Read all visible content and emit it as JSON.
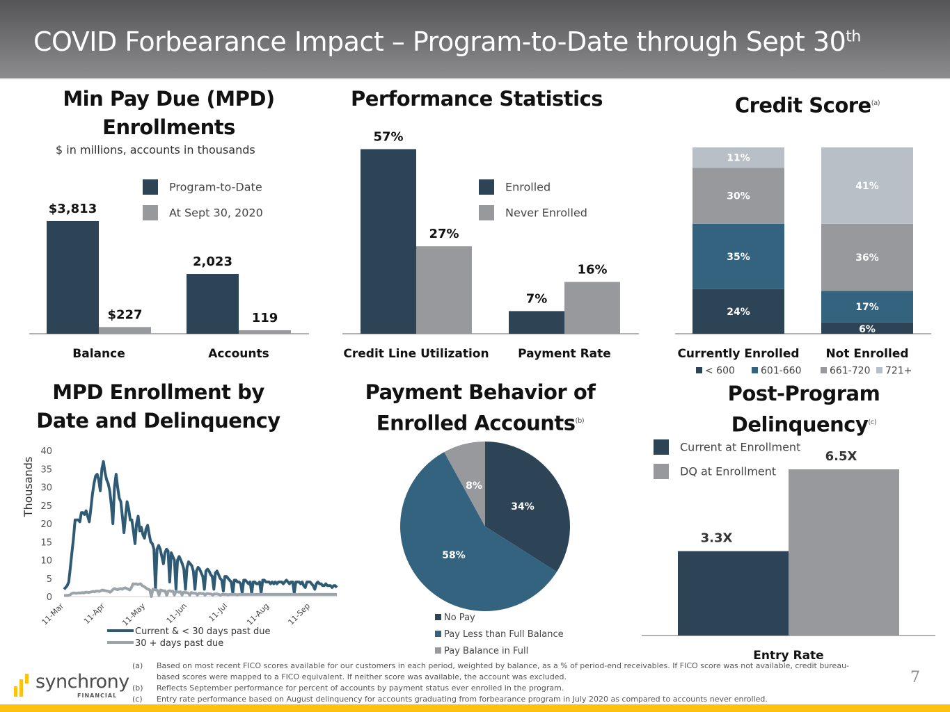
{
  "header": {
    "title": "COVID Forbearance Impact – Program-to-Date through Sept 30",
    "title_sup": "th"
  },
  "colors": {
    "dark": "#2d4456",
    "mid": "#33637f",
    "gray": "#98999c",
    "light": "#b9bfc6",
    "accent": "#fdc110"
  },
  "panels": {
    "mpd": {
      "title_line1": "Min Pay Due (MPD)",
      "title_line2": "Enrollments",
      "subtitle": "$ in millions, accounts in thousands"
    },
    "perf": {
      "title": "Performance Statistics"
    },
    "credit": {
      "title": "Credit Score",
      "note": "(a)"
    },
    "line": {
      "title_line1": "MPD Enrollment by",
      "title_line2": "Date and Delinquency"
    },
    "pie": {
      "title_line1": "Payment Behavior of",
      "title_line2": "Enrolled Accounts",
      "note": "(b)"
    },
    "post": {
      "title_line1": "Post-Program",
      "title_line2": "Delinquency",
      "note": "(c)"
    }
  },
  "chart_data": [
    {
      "id": "mpd",
      "type": "bar",
      "categories": [
        "Balance",
        "Accounts"
      ],
      "series": [
        {
          "name": "Program-to-Date",
          "values": [
            3813,
            2023
          ],
          "labels": [
            "$3,813",
            "2,023"
          ]
        },
        {
          "name": "At Sept 30, 2020",
          "values": [
            227,
            119
          ],
          "labels": [
            "$227",
            "119"
          ]
        }
      ],
      "ylim": [
        0,
        4000
      ]
    },
    {
      "id": "perf",
      "type": "bar",
      "categories": [
        "Credit Line Utilization",
        "Payment Rate"
      ],
      "series": [
        {
          "name": "Enrolled",
          "values": [
            57,
            7
          ],
          "labels": [
            "57%",
            "7%"
          ]
        },
        {
          "name": "Never Enrolled",
          "values": [
            27,
            16
          ],
          "labels": [
            "27%",
            "16%"
          ]
        }
      ],
      "ylim": [
        0,
        60
      ]
    },
    {
      "id": "credit",
      "type": "bar",
      "stacked": true,
      "categories": [
        "Currently Enrolled",
        "Not Enrolled"
      ],
      "series": [
        {
          "name": "< 600",
          "values": [
            24,
            6
          ]
        },
        {
          "name": "601-660",
          "values": [
            35,
            17
          ]
        },
        {
          "name": "661-720",
          "values": [
            30,
            36
          ]
        },
        {
          "name": "721+",
          "values": [
            11,
            41
          ]
        }
      ],
      "legend": "bottom"
    },
    {
      "id": "line",
      "type": "line",
      "ylabel": "Thousands",
      "ylim": [
        0,
        40
      ],
      "yticks": [
        0,
        5,
        10,
        15,
        20,
        25,
        30,
        35,
        40
      ],
      "xticks": [
        "11-Mar",
        "11-Apr",
        "11-May",
        "11-Jun",
        "11-Jul",
        "11-Aug",
        "11-Sep"
      ],
      "x_start": "11-Mar",
      "x_end": "30-Sep",
      "series": [
        {
          "name": "Current & < 30 days past due",
          "values": [
            2,
            2.5,
            3,
            4,
            8,
            12,
            16,
            21,
            21,
            21,
            20.5,
            23,
            23,
            22.5,
            23.5,
            22,
            20.5,
            24,
            28,
            31,
            33,
            33.5,
            32,
            29,
            35,
            37,
            34,
            32,
            31,
            29,
            25,
            20,
            30,
            33.5,
            30,
            27,
            26,
            22,
            17.5,
            22,
            26,
            24,
            21,
            21,
            18,
            14.5,
            20,
            22,
            18,
            19,
            17,
            16,
            18.5,
            19.5,
            17,
            15,
            14.5,
            13,
            2,
            13,
            14,
            13,
            11,
            9,
            12,
            13,
            12.5,
            4,
            12,
            11,
            10,
            2,
            10,
            11,
            10,
            9,
            7.5,
            2,
            8,
            9.5,
            9,
            8.5,
            7,
            2,
            7,
            8,
            7.5,
            6.5,
            5.5,
            2,
            7,
            7.5,
            7,
            6,
            5.5,
            2,
            6.5,
            7,
            6,
            5,
            4.5,
            1.5,
            5.5,
            5.5,
            5,
            4.5,
            4,
            1,
            4.5,
            4.5,
            4,
            4,
            3.5,
            1,
            4.5,
            4.5,
            4,
            3.5,
            4,
            1,
            4,
            4,
            3.5,
            3.5,
            4,
            1,
            4.5,
            4.5,
            4,
            4,
            4,
            3.5,
            4,
            3.5,
            4,
            3.5,
            4,
            4,
            4,
            3.5,
            4,
            4.5,
            4,
            3.5,
            4,
            4,
            1,
            4,
            4,
            4,
            3.5,
            4,
            3,
            2.5,
            4,
            4,
            4,
            3.5,
            3,
            2,
            3.5,
            4,
            3.5,
            3.5,
            3,
            3,
            3.5,
            3,
            3,
            3,
            2.5,
            3,
            3,
            2.5
          ]
        },
        {
          "name": "30 + days past due",
          "values": [
            0.3,
            0.3,
            0.3,
            0.4,
            0.5,
            0.8,
            1,
            1,
            0.9,
            1,
            1,
            1,
            1.1,
            1,
            1.2,
            1.2,
            1.1,
            1.2,
            1.3,
            1.4,
            1.3,
            1.5,
            1.5,
            1.4,
            1.6,
            1.8,
            1.7,
            1.6,
            1.5,
            1.4,
            1.2,
            1.5,
            2,
            2.2,
            2,
            1.9,
            2.1,
            2.2,
            2,
            2.3,
            2.4,
            2.2,
            2,
            1.8,
            2.5,
            3.5,
            3.4,
            3.5,
            3.3,
            3.4,
            3.5,
            3,
            2.8,
            2.5,
            2.2,
            2,
            1.8,
            0,
            2,
            1.9,
            1.8,
            1.7,
            0.3,
            1.8,
            1.7,
            1.5,
            1.6,
            0.3,
            1.5,
            1.6,
            1.4,
            1.5,
            0.4,
            1.4,
            1.3,
            1.2,
            1.3,
            0.4,
            1.2,
            1.1,
            1.1,
            1,
            0.4,
            1.1,
            1,
            0.9,
            0.9,
            0.4,
            0.9,
            0.9,
            0.8,
            0.8,
            0.4,
            0.8,
            0.8,
            0.7,
            0.7,
            0.4,
            0.7,
            0.7,
            0.7,
            0.6,
            0.4,
            0.6,
            0.6,
            0.6,
            0.6,
            0.5,
            0.6,
            0.6,
            0.6,
            0.6,
            0.6,
            0.5,
            0.6,
            0.6,
            0.6,
            0.6,
            0.6,
            0.6,
            0.6,
            0.6,
            0.6,
            0.6,
            0.6,
            0.6,
            0.6,
            0.6,
            0.6,
            0.6,
            0.6,
            0.6,
            0.6,
            0.6,
            0.6,
            0.6,
            0.6,
            0.6,
            0.6,
            0.6,
            0.6,
            0.6,
            0.6,
            0.6,
            0.6,
            0.6,
            0.6,
            0.6,
            0.6,
            0.6,
            0.6,
            0.6,
            0.6,
            0.6,
            0.6,
            0.6,
            0.6,
            0.6,
            0.6,
            0.6,
            0.6,
            0.6,
            0.6,
            0.6,
            0.6,
            0.6,
            0.6,
            0.6,
            0.6,
            0.6,
            0.6,
            0.6,
            0.6,
            0.6,
            0.6,
            0.6,
            0.6,
            0.6,
            0.6
          ]
        }
      ],
      "legend": "bottom"
    },
    {
      "id": "pie",
      "type": "pie",
      "slices": [
        {
          "name": "No Pay",
          "value": 34,
          "label": "34%"
        },
        {
          "name": "Pay Less than Full Balance",
          "value": 58,
          "label": "58%"
        },
        {
          "name": "Pay Balance in Full",
          "value": 8,
          "label": "8%"
        }
      ],
      "legend": "bottom"
    },
    {
      "id": "post",
      "type": "bar",
      "categories": [
        "Entry Rate"
      ],
      "series": [
        {
          "name": "Current at Enrollment",
          "values": [
            3.3
          ],
          "labels": [
            "3.3X"
          ]
        },
        {
          "name": "DQ at Enrollment",
          "values": [
            6.5
          ],
          "labels": [
            "6.5X"
          ]
        }
      ],
      "ylim": [
        0,
        7
      ]
    }
  ],
  "footnotes": [
    {
      "key": "(a)",
      "text": "Based on most recent FICO scores available for our customers in each period, weighted by balance, as a % of period-end receivables. If FICO score was not available, credit bureau-based scores were mapped to a FICO equivalent. If neither score was available, the account was excluded."
    },
    {
      "key": "(b)",
      "text": "Reflects September performance for percent of accounts by payment status ever enrolled in the program."
    },
    {
      "key": "(c)",
      "text": "Entry rate performance based on August delinquency for accounts graduating from forbearance program in July 2020 as compared to accounts never enrolled."
    }
  ],
  "logo": {
    "name": "synchrony",
    "sub": "FINANCIAL"
  },
  "page_number": "7"
}
